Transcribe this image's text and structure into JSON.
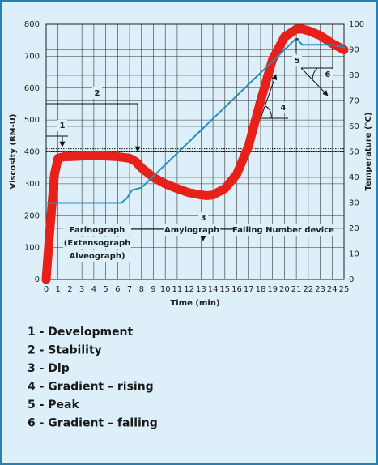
{
  "chart_data": {
    "type": "line",
    "y_label": "Viscosity (RM-U)",
    "y2_label": "Temperature (°C)",
    "x_label": "Time (min)",
    "xlim": [
      0,
      25
    ],
    "xticks": [
      0,
      1,
      2,
      3,
      4,
      5,
      6,
      7,
      8,
      9,
      10,
      11,
      12,
      13,
      14,
      15,
      16,
      17,
      18,
      19,
      20,
      21,
      22,
      23,
      24,
      25
    ],
    "ylim": [
      0,
      800
    ],
    "yticks": [
      0,
      100,
      200,
      300,
      400,
      500,
      600,
      700,
      800
    ],
    "y2lim": [
      0,
      100
    ],
    "y2ticks": [
      0,
      10,
      20,
      30,
      40,
      50,
      60,
      70,
      80,
      90,
      100
    ],
    "grid": true,
    "reference_lines": [
      400,
      410
    ],
    "series": [
      {
        "name": "Viscosity",
        "color": "#e8201a",
        "x": [
          0,
          0.3,
          0.7,
          1,
          1.5,
          2,
          3,
          4,
          5,
          6,
          7,
          7.5,
          8,
          9,
          10,
          11,
          12,
          13,
          13.5,
          14,
          15,
          16,
          17,
          18,
          19,
          20,
          21,
          21.5,
          22,
          23,
          24,
          25
        ],
        "values": [
          0,
          150,
          330,
          380,
          385,
          385,
          387,
          388,
          387,
          385,
          380,
          370,
          350,
          320,
          300,
          285,
          272,
          265,
          263,
          265,
          285,
          330,
          420,
          560,
          690,
          760,
          785,
          785,
          780,
          765,
          740,
          720
        ]
      },
      {
        "name": "Temperature",
        "color": "#2a8fbf",
        "axis": "y2",
        "x": [
          0,
          6.3,
          6.8,
          7.2,
          8,
          9,
          10,
          11,
          12,
          13,
          14,
          15,
          16,
          17,
          18,
          19,
          20,
          21,
          21.5,
          22,
          23,
          24,
          25
        ],
        "values": [
          30,
          30,
          32,
          35,
          36,
          40.5,
          45,
          49.5,
          54,
          58.5,
          63,
          67.5,
          72,
          76.5,
          81,
          85.5,
          90,
          94.5,
          92,
          92,
          92,
          92,
          91
        ]
      }
    ],
    "annotations": [
      "1",
      "2",
      "3",
      "4",
      "5",
      "6"
    ],
    "regions": [
      "Farinograph",
      "(Extensograph",
      "Alveograph)",
      "Amylograph",
      "Falling Number device"
    ],
    "notes": [
      "1 - Development",
      "2 - Stability",
      "3 - Dip",
      "4 - Gradient – rising",
      "5 - Peak",
      "6 - Gradient – falling"
    ]
  }
}
